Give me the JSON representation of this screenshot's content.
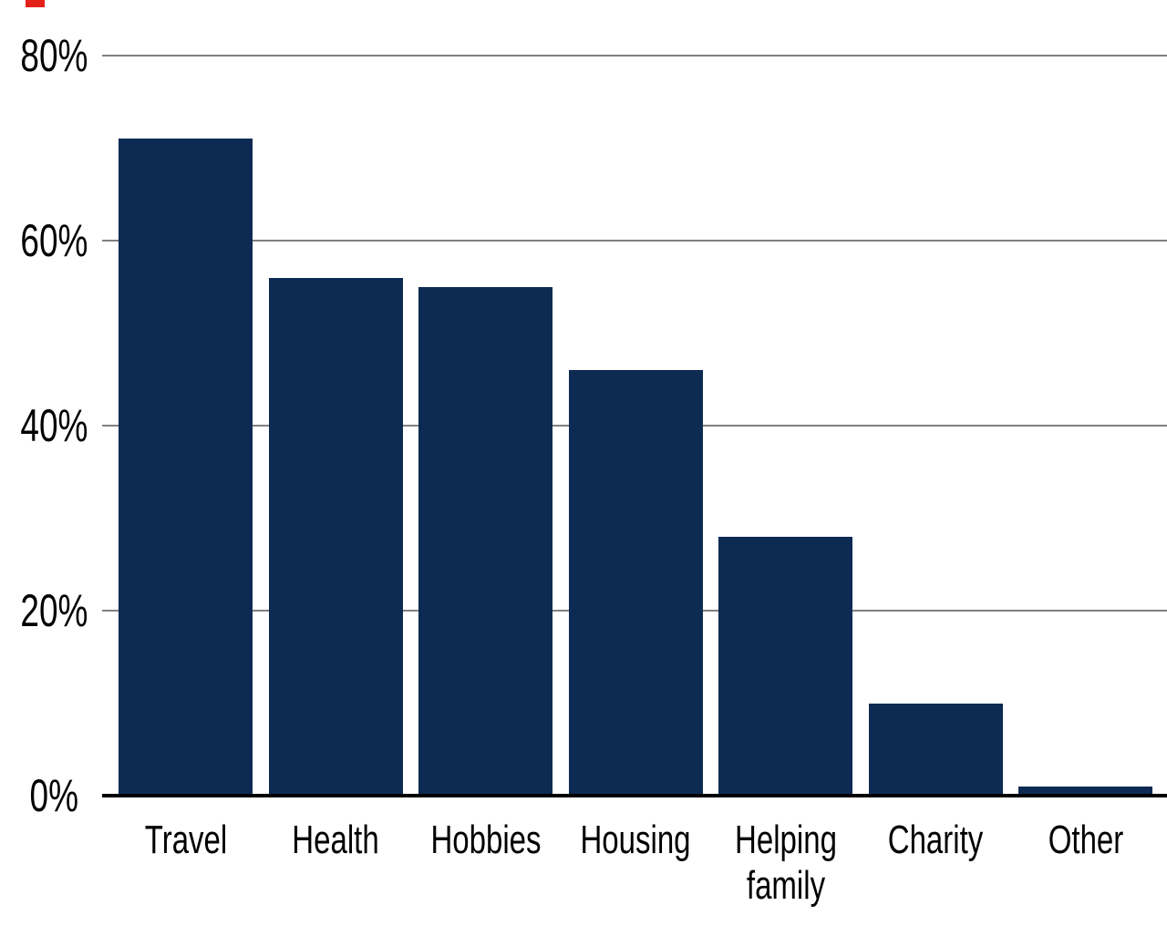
{
  "page": {
    "background_color": "#ffffff",
    "marker_color": "#e32119"
  },
  "chart_data": {
    "type": "bar",
    "title": "",
    "xlabel": "",
    "ylabel": "",
    "categories": [
      "Travel",
      "Health",
      "Hobbies",
      "Housing",
      "Helping family",
      "Charity",
      "Other"
    ],
    "values": [
      71,
      56,
      55,
      46,
      28,
      10,
      1
    ],
    "unit": "%",
    "ylim": [
      0,
      80
    ],
    "yticks": [
      {
        "value": 0,
        "label": "0%"
      },
      {
        "value": 20,
        "label": "20%"
      },
      {
        "value": 40,
        "label": "40%"
      },
      {
        "value": 60,
        "label": "60%"
      },
      {
        "value": 80,
        "label": "80%"
      }
    ],
    "grid": "horizontal",
    "legend": "none",
    "bar_color": "#0d2b52",
    "gridline_color": "#808080",
    "axis_line_color": "#000000",
    "text_color": "#000000"
  }
}
